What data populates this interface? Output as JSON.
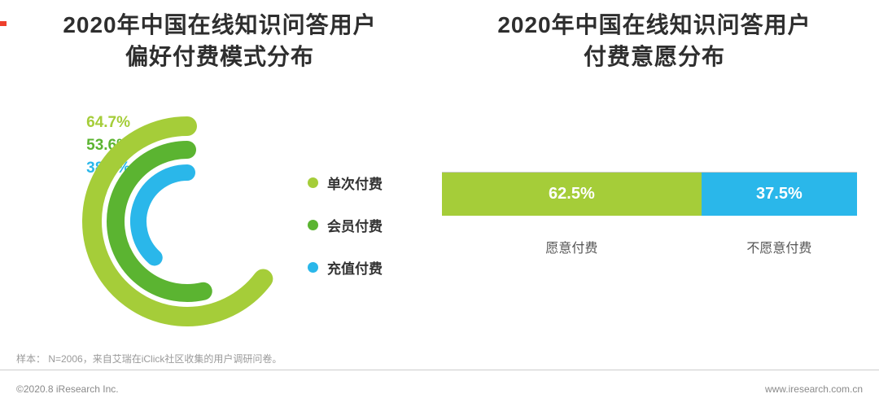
{
  "colors": {
    "light_green": "#a5cd39",
    "green": "#5bb431",
    "cyan": "#2ab7ea"
  },
  "chart_data": [
    {
      "type": "radial_bar",
      "title": "2020年中国在线知识问答用户偏好付费模式分布",
      "title_lines": [
        "2020年中国在线知识问答用户",
        "偏好付费模式分布"
      ],
      "unit": "%",
      "max": 100,
      "legend_position": "right",
      "series": [
        {
          "name": "单次付费",
          "value": 64.7,
          "label": "64.7%",
          "color": "#a5cd39"
        },
        {
          "name": "会员付费",
          "value": 53.6,
          "label": "53.6%",
          "color": "#5bb431"
        },
        {
          "name": "充值付费",
          "value": 38.3,
          "label": "38.3%",
          "color": "#2ab7ea"
        }
      ]
    },
    {
      "type": "bar",
      "title": "2020年中国在线知识问答用户付费意愿分布",
      "title_lines": [
        "2020年中国在线知识问答用户",
        "付费意愿分布"
      ],
      "orientation": "horizontal-stacked",
      "categories": [
        "愿意付费",
        "不愿意付费"
      ],
      "values": [
        62.5,
        37.5
      ],
      "labels": [
        "62.5%",
        "37.5%"
      ],
      "colors": [
        "#a5cd39",
        "#2ab7ea"
      ],
      "xlim": [
        0,
        100
      ],
      "grid": false
    }
  ],
  "footer": {
    "sample_note": "样本：  N=2006，来自艾瑞在iClick社区收集的用户调研问卷。",
    "copyright": "©2020.8 iResearch Inc.",
    "website": "www.iresearch.com.cn"
  }
}
